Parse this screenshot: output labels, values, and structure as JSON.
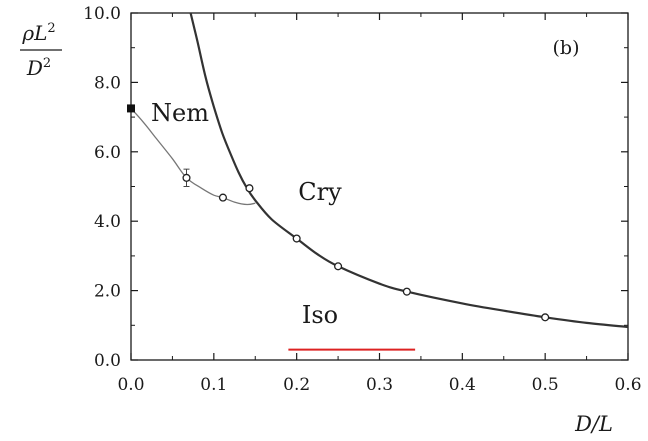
{
  "chart_data": {
    "type": "line",
    "panel_label": "(b)",
    "ylabel": {
      "num_prefix": "ρL",
      "num_sup": "2",
      "den_prefix": "D",
      "den_sup": "2"
    },
    "xlabel": "D/L",
    "xlim": [
      0,
      0.6
    ],
    "ylim": [
      0,
      10
    ],
    "xticks": [
      0.0,
      0.1,
      0.2,
      0.3,
      0.4,
      0.5,
      0.6
    ],
    "xtick_labels": [
      "0.0",
      "0.1",
      "0.2",
      "0.3",
      "0.4",
      "0.5",
      "0.6"
    ],
    "yticks": [
      0,
      2,
      4,
      6,
      8,
      10
    ],
    "ytick_labels": [
      "0.0",
      "2.0",
      "4.0",
      "6.0",
      "8.0",
      "10.0"
    ],
    "grid": false,
    "region_labels": [
      "Nem",
      "Cry",
      "Iso"
    ],
    "series": [
      {
        "kind": "iso-cry boundary",
        "color": "#333333",
        "points": [
          [
            0.072,
            10.0
          ],
          [
            0.08,
            9.2
          ],
          [
            0.09,
            8.15
          ],
          [
            0.1,
            7.3
          ],
          [
            0.11,
            6.55
          ],
          [
            0.12,
            5.95
          ],
          [
            0.13,
            5.4
          ],
          [
            0.14,
            4.95
          ],
          [
            0.15,
            4.6
          ],
          [
            0.17,
            4.05
          ],
          [
            0.2,
            3.5
          ],
          [
            0.225,
            3.05
          ],
          [
            0.25,
            2.7
          ],
          [
            0.3,
            2.2
          ],
          [
            0.333,
            1.97
          ],
          [
            0.4,
            1.63
          ],
          [
            0.45,
            1.42
          ],
          [
            0.5,
            1.23
          ],
          [
            0.55,
            1.07
          ],
          [
            0.6,
            0.95
          ]
        ]
      },
      {
        "kind": "nem boundary",
        "color": "#777777",
        "points": [
          [
            0.0,
            7.25
          ],
          [
            0.015,
            6.85
          ],
          [
            0.03,
            6.4
          ],
          [
            0.05,
            5.8
          ],
          [
            0.067,
            5.25
          ],
          [
            0.085,
            4.95
          ],
          [
            0.1,
            4.75
          ],
          [
            0.111,
            4.68
          ],
          [
            0.125,
            4.55
          ],
          [
            0.14,
            4.48
          ],
          [
            0.15,
            4.52
          ]
        ]
      }
    ],
    "points": [
      {
        "x": 0.0,
        "y": 7.25,
        "filled": true,
        "err": 0
      },
      {
        "x": 0.067,
        "y": 5.25,
        "filled": false,
        "err": 0.25
      },
      {
        "x": 0.111,
        "y": 4.68,
        "filled": false,
        "err": 0
      },
      {
        "x": 0.143,
        "y": 4.95,
        "filled": false,
        "err": 0
      },
      {
        "x": 0.2,
        "y": 3.5,
        "filled": false,
        "err": 0
      },
      {
        "x": 0.25,
        "y": 2.7,
        "filled": false,
        "err": 0
      },
      {
        "x": 0.333,
        "y": 1.97,
        "filled": false,
        "err": 0
      },
      {
        "x": 0.5,
        "y": 1.23,
        "filled": false,
        "err": 0
      }
    ],
    "red_underline": {
      "color": "#dd2222",
      "x_from": 0.19,
      "x_to": 0.343,
      "y": 0.3
    }
  }
}
